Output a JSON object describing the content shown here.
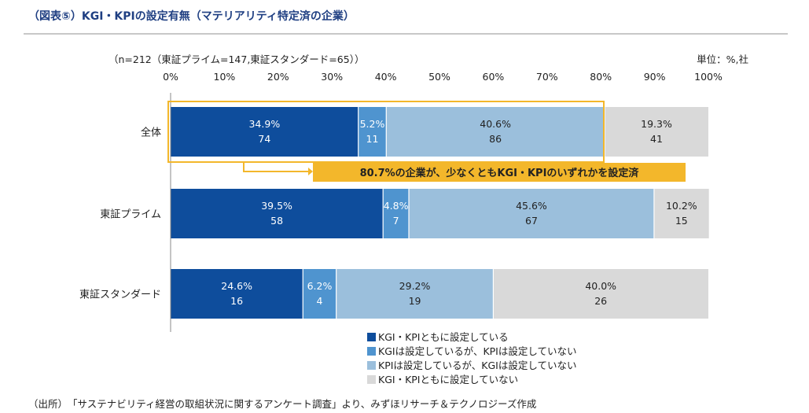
{
  "title": "（図表⑤）KGI・KPIの設定有無（マテリアリティ特定済の企業）",
  "footnote": "（出所）　「サステナビリティ経営の取組状況に関するアンケート調査」より、みずほリサーチ＆テクノロジーズ作成",
  "chart_data": {
    "type": "bar",
    "orientation": "horizontal",
    "stacked": true,
    "sample_note": "（n=212（東証プライム=147,東証スタンダード=65））",
    "unit_note": "単位：%,社",
    "xlim": [
      0,
      100
    ],
    "ticks": [
      "0%",
      "10%",
      "20%",
      "30%",
      "40%",
      "50%",
      "60%",
      "70%",
      "80%",
      "90%",
      "100%"
    ],
    "categories": [
      "全体",
      "東証プライム",
      "東証スタンダード"
    ],
    "series": [
      {
        "name": "KGI・KPIともに設定している",
        "color": "#0e4d9c",
        "text_color": "#ffffff",
        "values": [
          34.9,
          39.5,
          24.6
        ],
        "counts": [
          74,
          58,
          16
        ],
        "labels": [
          "34.9%",
          "39.5%",
          "24.6%"
        ]
      },
      {
        "name": "KGIは設定しているが、KPIは設定していない",
        "color": "#4f94cf",
        "text_color": "#ffffff",
        "values": [
          5.2,
          4.8,
          6.2
        ],
        "counts": [
          11,
          7,
          4
        ],
        "labels": [
          "5.2%",
          "4.8%",
          "6.2%"
        ]
      },
      {
        "name": "KPIは設定しているが、KGIは設定していない",
        "color": "#9bbfdc",
        "text_color": "#222222",
        "values": [
          40.6,
          45.6,
          29.2
        ],
        "counts": [
          86,
          67,
          19
        ],
        "labels": [
          "40.6%",
          "45.6%",
          "29.2%"
        ]
      },
      {
        "name": "KGI・KPIともに設定していない",
        "color": "#d9d9d9",
        "text_color": "#222222",
        "values": [
          19.3,
          10.2,
          40.0
        ],
        "counts": [
          41,
          15,
          26
        ],
        "labels": [
          "19.3%",
          "10.2%",
          "40.0%"
        ]
      }
    ],
    "annotation": {
      "text": "80.7%の企業が、少なくともKGI・KPIのいずれかを設定済",
      "highlight_category": "全体",
      "highlight_range": [
        0,
        80.7
      ],
      "color": "#f3b72b"
    }
  }
}
